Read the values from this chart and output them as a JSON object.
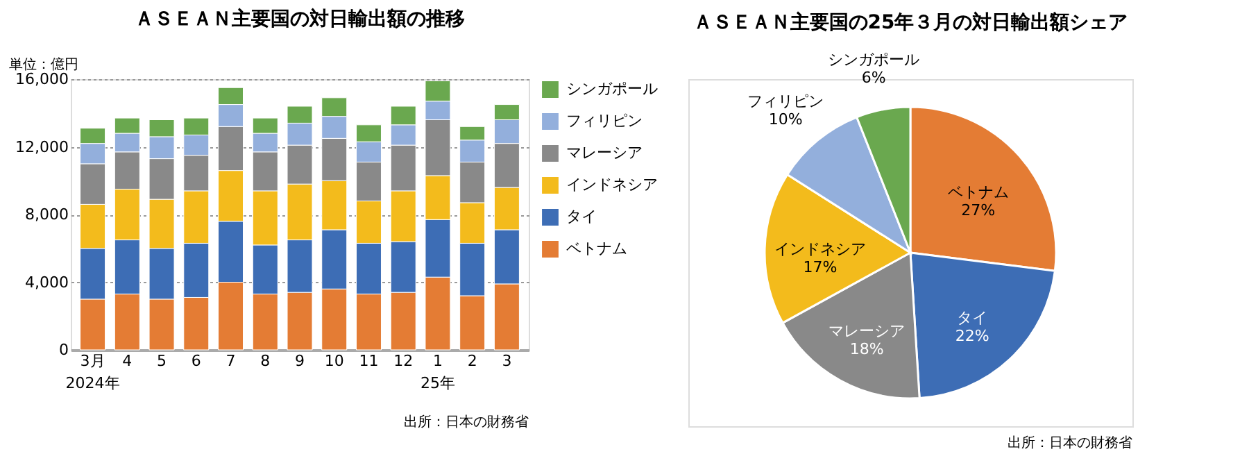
{
  "chart_data": [
    {
      "type": "bar",
      "title": "ＡＳＥＡＮ主要国の対日輸出額の推移",
      "ylabel": "単位：億円",
      "stacked": true,
      "categories": [
        "3月\n2024年",
        "4",
        "5",
        "6",
        "7",
        "8",
        "9",
        "10",
        "11",
        "12",
        "1\n25年",
        "2",
        "3"
      ],
      "series": [
        {
          "name": "ベトナム",
          "color": "#e47c34",
          "values": [
            3000,
            3300,
            3000,
            3100,
            4000,
            3300,
            3400,
            3600,
            3300,
            3400,
            4300,
            3200,
            3900
          ]
        },
        {
          "name": "タイ",
          "color": "#3d6db5",
          "values": [
            3000,
            3200,
            3000,
            3200,
            3600,
            2900,
            3100,
            3500,
            3000,
            3000,
            3400,
            3100,
            3200
          ]
        },
        {
          "name": "インドネシア",
          "color": "#f3bb1c",
          "values": [
            2600,
            3000,
            2900,
            3100,
            3000,
            3200,
            3300,
            2900,
            2500,
            3000,
            2600,
            2400,
            2500
          ]
        },
        {
          "name": "マレーシア",
          "color": "#898989",
          "values": [
            2400,
            2200,
            2400,
            2100,
            2600,
            2300,
            2300,
            2500,
            2300,
            2700,
            3300,
            2400,
            2600
          ]
        },
        {
          "name": "フィリピン",
          "color": "#93afdc",
          "values": [
            1200,
            1100,
            1300,
            1200,
            1300,
            1100,
            1300,
            1300,
            1200,
            1200,
            1100,
            1300,
            1400
          ]
        },
        {
          "name": "シンガポール",
          "color": "#6aa84f",
          "values": [
            900,
            900,
            1000,
            1000,
            1000,
            900,
            1000,
            1100,
            1000,
            1100,
            1200,
            800,
            900
          ]
        }
      ],
      "ylim": [
        0,
        16000
      ],
      "yticks": [
        0,
        {
          "value": 4000,
          "label": "4,000"
        },
        {
          "value": 8000,
          "label": "8,000"
        },
        {
          "value": 12000,
          "label": "12,000"
        },
        {
          "value": 16000,
          "label": "16,000"
        }
      ],
      "grid": "y",
      "legend": "right",
      "annotations": [
        "出所：日本の財務省"
      ]
    },
    {
      "type": "pie",
      "title": "ＡＳＥＡＮ主要国の25年３月の対日輸出額シェア",
      "categories": [
        "ベトナム",
        "タイ",
        "マレーシア",
        "インドネシア",
        "フィリピン",
        "シンガポール"
      ],
      "values": [
        27,
        22,
        18,
        17,
        10,
        6
      ],
      "colors": [
        "#e47c34",
        "#3d6db5",
        "#898989",
        "#f3bb1c",
        "#93afdc",
        "#6aa84f"
      ],
      "value_labels": [
        "27%",
        "22%",
        "18%",
        "17%",
        "10%",
        "6%"
      ],
      "legend": false,
      "annotations": [
        "出所：日本の財務省"
      ]
    }
  ]
}
